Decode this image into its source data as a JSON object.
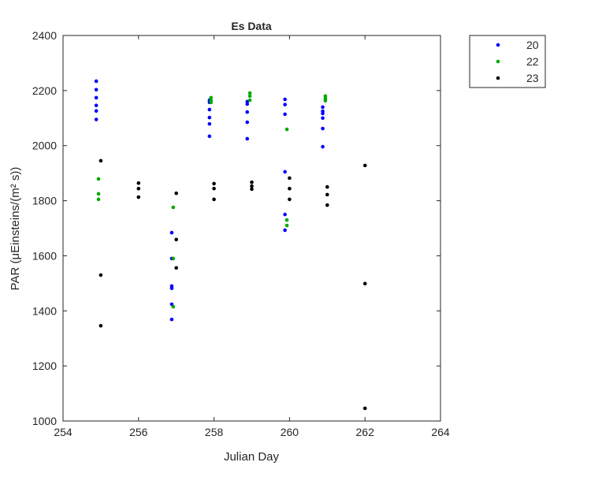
{
  "chart_data": {
    "type": "scatter",
    "title": "Es Data",
    "x_label": "Julian Day",
    "y_label": "PAR (μEinsteins/(m² s))",
    "xlim": [
      254,
      264
    ],
    "xticks": [
      254,
      256,
      258,
      260,
      262,
      264
    ],
    "ylim": [
      1000,
      2400
    ],
    "yticks": [
      1000,
      1200,
      1400,
      1600,
      1800,
      2000,
      2200,
      2400
    ],
    "grid": false,
    "legend": "outside-right",
    "series": [
      {
        "name": "20",
        "color": "#0000ff",
        "x": [
          254.88,
          254.88,
          254.88,
          254.88,
          254.88,
          254.88,
          256.88,
          256.88,
          256.88,
          256.88,
          256.88,
          256.88,
          257.88,
          257.88,
          257.88,
          257.88,
          257.88,
          257.88,
          258.88,
          258.88,
          258.88,
          258.88,
          258.88,
          259.88,
          259.88,
          259.88,
          259.88,
          259.88,
          259.88,
          260.88,
          260.88,
          260.88,
          260.88,
          260.88,
          260.88
        ],
        "values": [
          2234,
          2203,
          2174,
          2146,
          2126,
          2095,
          1684,
          1590,
          1490,
          1482,
          1424,
          1369,
          2165,
          2157,
          2131,
          2102,
          2079,
          2034,
          2160,
          2151,
          2122,
          2085,
          2025,
          2168,
          2149,
          2114,
          1905,
          1750,
          1693,
          2140,
          2125,
          2117,
          2100,
          2062,
          1996
        ]
      },
      {
        "name": "22",
        "color": "#00aa00",
        "x": [
          254.94,
          254.94,
          254.94,
          256.92,
          256.92,
          256.92,
          257.92,
          257.92,
          257.92,
          258.95,
          258.95,
          258.95,
          259.93,
          259.93,
          259.93,
          260.95,
          260.95,
          260.95
        ],
        "values": [
          1879,
          1825,
          1805,
          1776,
          1590,
          1415,
          2174,
          2165,
          2157,
          2191,
          2180,
          2165,
          2059,
          1730,
          1710,
          2180,
          2171,
          2163
        ]
      },
      {
        "name": "23",
        "color": "#000000",
        "x": [
          255.0,
          255.0,
          255.0,
          256.0,
          256.0,
          256.0,
          257.0,
          257.0,
          257.0,
          258.0,
          258.0,
          258.0,
          259.0,
          259.0,
          259.0,
          260.0,
          260.0,
          260.0,
          261.0,
          261.0,
          261.0,
          262.0,
          262.0,
          262.0
        ],
        "values": [
          1945,
          1530,
          1346,
          1864,
          1844,
          1813,
          1827,
          1659,
          1556,
          1862,
          1844,
          1805,
          1867,
          1853,
          1842,
          1882,
          1844,
          1805,
          1850,
          1822,
          1784,
          1928,
          1499,
          1046
        ]
      }
    ]
  }
}
